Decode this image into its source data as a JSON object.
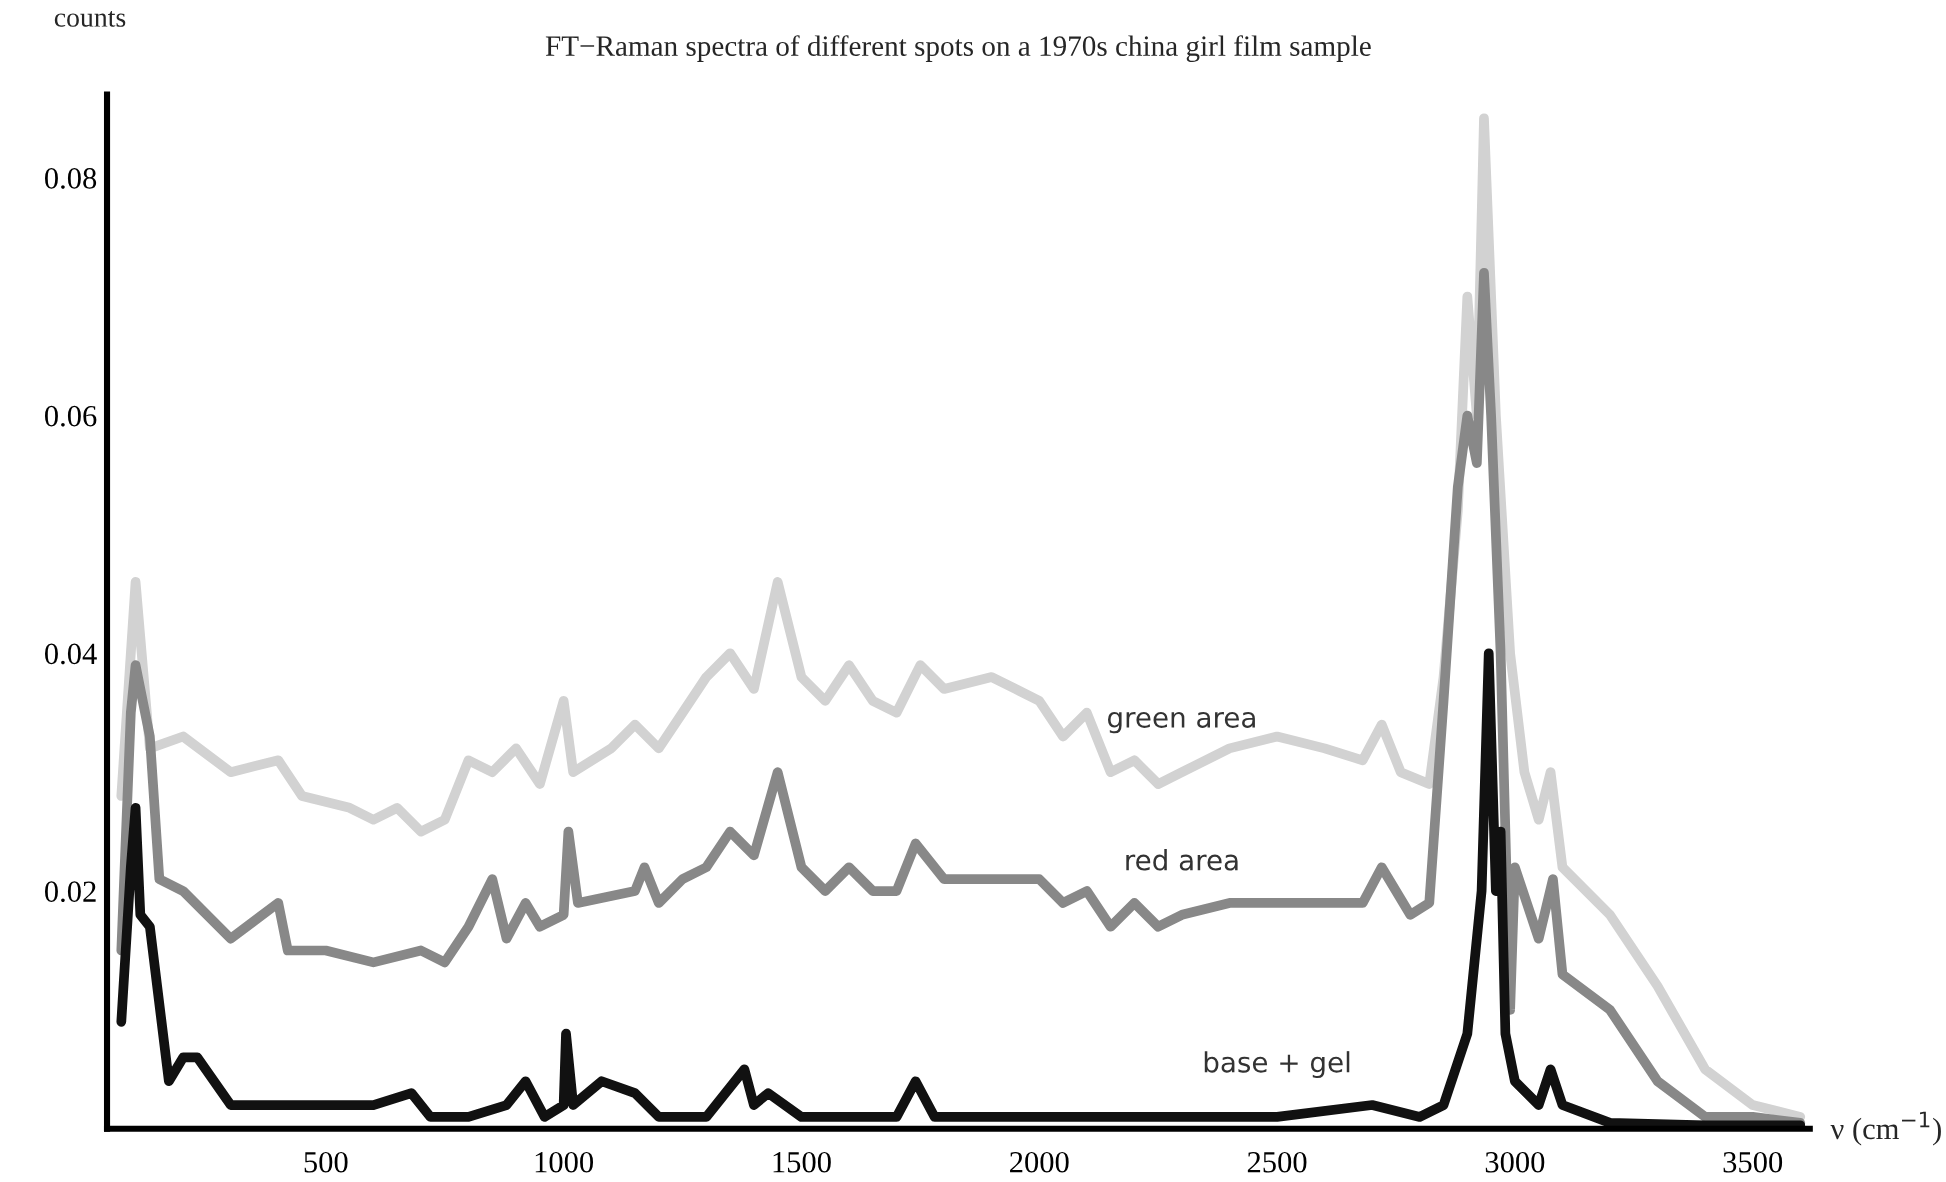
{
  "chart_data": {
    "type": "line",
    "title": "FT−Raman spectra of different spots on a 1970s china girl film sample",
    "xlabel": "ν (cm$^{−1}$)",
    "ylabel": "counts",
    "xlim": [
      40,
      3620
    ],
    "ylim": [
      0,
      0.087
    ],
    "xticks": [
      500,
      1000,
      1500,
      2000,
      2500,
      3000,
      3500
    ],
    "yticks": [
      0.02,
      0.04,
      0.06,
      0.08
    ],
    "grid": false,
    "legend": false,
    "series": [
      {
        "name": "green area",
        "color": "#d2d2d2",
        "x": [
          70,
          100,
          130,
          200,
          300,
          400,
          450,
          550,
          600,
          650,
          700,
          750,
          800,
          850,
          900,
          950,
          1000,
          1020,
          1100,
          1150,
          1200,
          1250,
          1300,
          1350,
          1400,
          1450,
          1500,
          1550,
          1600,
          1650,
          1700,
          1750,
          1800,
          1900,
          1950,
          2000,
          2050,
          2100,
          2150,
          2200,
          2250,
          2300,
          2400,
          2500,
          2600,
          2680,
          2720,
          2760,
          2820,
          2850,
          2880,
          2900,
          2920,
          2935,
          2960,
          2990,
          3020,
          3050,
          3075,
          3100,
          3200,
          3300,
          3400,
          3500,
          3600
        ],
        "values": [
          0.028,
          0.046,
          0.032,
          0.033,
          0.03,
          0.031,
          0.028,
          0.027,
          0.026,
          0.027,
          0.025,
          0.026,
          0.031,
          0.03,
          0.032,
          0.029,
          0.036,
          0.03,
          0.032,
          0.034,
          0.032,
          0.035,
          0.038,
          0.04,
          0.037,
          0.046,
          0.038,
          0.036,
          0.039,
          0.036,
          0.035,
          0.039,
          0.037,
          0.038,
          0.037,
          0.036,
          0.033,
          0.035,
          0.03,
          0.031,
          0.029,
          0.03,
          0.032,
          0.033,
          0.032,
          0.031,
          0.034,
          0.03,
          0.029,
          0.038,
          0.052,
          0.07,
          0.06,
          0.085,
          0.06,
          0.04,
          0.03,
          0.026,
          0.03,
          0.022,
          0.018,
          0.012,
          0.005,
          0.002,
          0.001
        ]
      },
      {
        "name": "red area",
        "color": "#888888",
        "x": [
          70,
          90,
          100,
          130,
          150,
          200,
          300,
          400,
          420,
          500,
          600,
          700,
          750,
          800,
          850,
          880,
          920,
          950,
          1000,
          1010,
          1030,
          1150,
          1170,
          1200,
          1250,
          1300,
          1350,
          1400,
          1450,
          1500,
          1550,
          1600,
          1650,
          1700,
          1740,
          1800,
          1900,
          2000,
          2050,
          2100,
          2150,
          2200,
          2250,
          2300,
          2400,
          2500,
          2600,
          2680,
          2720,
          2780,
          2820,
          2850,
          2880,
          2900,
          2920,
          2935,
          2950,
          2970,
          2990,
          3000,
          3050,
          3080,
          3100,
          3200,
          3300,
          3400,
          3500,
          3600
        ],
        "values": [
          0.015,
          0.035,
          0.039,
          0.033,
          0.021,
          0.02,
          0.016,
          0.019,
          0.015,
          0.015,
          0.014,
          0.015,
          0.014,
          0.017,
          0.021,
          0.016,
          0.019,
          0.017,
          0.018,
          0.025,
          0.019,
          0.02,
          0.022,
          0.019,
          0.021,
          0.022,
          0.025,
          0.023,
          0.03,
          0.022,
          0.02,
          0.022,
          0.02,
          0.02,
          0.024,
          0.021,
          0.021,
          0.021,
          0.019,
          0.02,
          0.017,
          0.019,
          0.017,
          0.018,
          0.019,
          0.019,
          0.019,
          0.019,
          0.022,
          0.018,
          0.019,
          0.036,
          0.054,
          0.06,
          0.056,
          0.072,
          0.06,
          0.04,
          0.01,
          0.022,
          0.016,
          0.021,
          0.013,
          0.01,
          0.004,
          0.001,
          0.001,
          0.0005
        ]
      },
      {
        "name": "base + gel",
        "color": "#111111",
        "x": [
          70,
          90,
          100,
          110,
          130,
          170,
          200,
          230,
          300,
          400,
          500,
          600,
          680,
          720,
          800,
          880,
          920,
          960,
          1000,
          1005,
          1020,
          1080,
          1150,
          1200,
          1300,
          1380,
          1400,
          1430,
          1500,
          1600,
          1700,
          1740,
          1780,
          2000,
          2500,
          2700,
          2800,
          2850,
          2900,
          2930,
          2945,
          2960,
          2970,
          2980,
          3000,
          3050,
          3075,
          3100,
          3200,
          3400,
          3600
        ],
        "values": [
          0.009,
          0.022,
          0.027,
          0.018,
          0.017,
          0.004,
          0.006,
          0.006,
          0.002,
          0.002,
          0.002,
          0.002,
          0.003,
          0.001,
          0.001,
          0.002,
          0.004,
          0.001,
          0.002,
          0.008,
          0.002,
          0.004,
          0.003,
          0.001,
          0.001,
          0.005,
          0.002,
          0.003,
          0.001,
          0.001,
          0.001,
          0.004,
          0.001,
          0.001,
          0.001,
          0.002,
          0.001,
          0.002,
          0.008,
          0.02,
          0.04,
          0.02,
          0.025,
          0.008,
          0.004,
          0.002,
          0.005,
          0.002,
          0.0005,
          0.0003,
          0.0003
        ]
      }
    ]
  }
}
